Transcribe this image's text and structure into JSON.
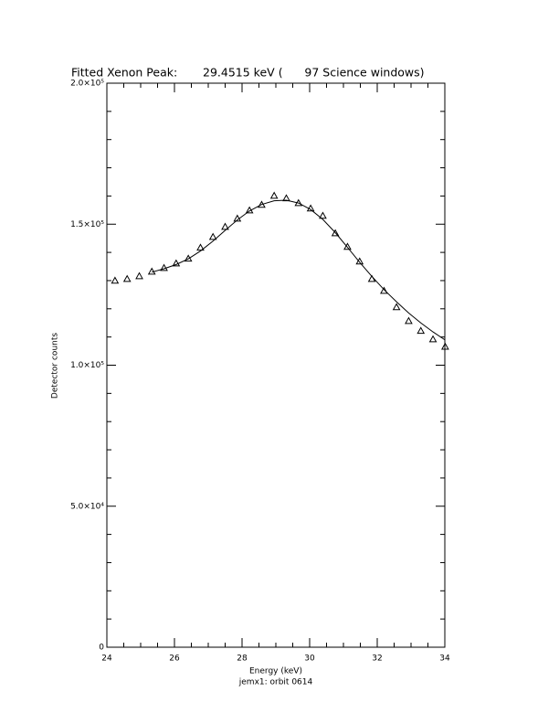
{
  "chart_data": {
    "type": "scatter",
    "title": "Fitted Xenon Peak:       29.4515 keV (      97 Science windows)",
    "x_label": "Energy (keV)",
    "subtitle": "jemx1: orbit 0614",
    "y_label": "Detector counts",
    "xlim": [
      24,
      34
    ],
    "ylim": [
      0,
      200000
    ],
    "xticks": [
      24,
      26,
      28,
      30,
      32,
      34
    ],
    "yticks": [
      0,
      {
        "value": 50000,
        "label": "5.0×10⁴"
      },
      {
        "value": 100000,
        "label": "1.0×10⁵"
      },
      {
        "value": 150000,
        "label": "1.5×10⁵"
      },
      {
        "value": 200000,
        "label": "2.0×10⁵"
      }
    ],
    "xminorticks": [
      24.5,
      25,
      25.5,
      26.5,
      27,
      27.5,
      28.5,
      29,
      29.5,
      30.5,
      31,
      31.5,
      32.5,
      33,
      33.5
    ],
    "yminorticks": [
      10000,
      20000,
      30000,
      40000,
      60000,
      70000,
      80000,
      90000,
      110000,
      120000,
      130000,
      140000,
      160000,
      170000,
      180000,
      190000
    ],
    "color": "#000000",
    "points": {
      "marker": "triangle",
      "x": [
        24.24,
        24.6,
        24.96,
        25.33,
        25.69,
        26.05,
        26.41,
        26.77,
        27.14,
        27.5,
        27.86,
        28.22,
        28.58,
        28.95,
        29.31,
        29.67,
        30.03,
        30.39,
        30.76,
        31.12,
        31.48,
        31.84,
        32.2,
        32.57,
        32.93,
        33.29,
        33.65,
        34.01
      ],
      "values": [
        130000,
        130600,
        131600,
        133200,
        134500,
        136100,
        137800,
        141700,
        145500,
        149100,
        152000,
        154900,
        156900,
        160100,
        159200,
        157500,
        155600,
        153000,
        146800,
        142000,
        136800,
        130600,
        126400,
        120600,
        115700,
        112200,
        109200,
        106600
      ]
    },
    "fit": {
      "x": [
        25.33,
        25.69,
        26.05,
        26.41,
        26.77,
        27.14,
        27.5,
        27.86,
        28.22,
        28.58,
        28.95,
        29.31,
        29.67,
        30.03,
        30.39,
        30.76,
        31.12,
        31.48,
        31.84,
        32.2,
        32.57,
        32.93,
        33.29,
        33.65,
        34.0
      ],
      "values": [
        133000,
        134200,
        135700,
        137700,
        140500,
        144000,
        147800,
        151500,
        154700,
        157000,
        158300,
        158500,
        157500,
        155200,
        151700,
        147000,
        141800,
        136500,
        131500,
        126800,
        122500,
        118500,
        115000,
        111800,
        109000
      ]
    }
  }
}
